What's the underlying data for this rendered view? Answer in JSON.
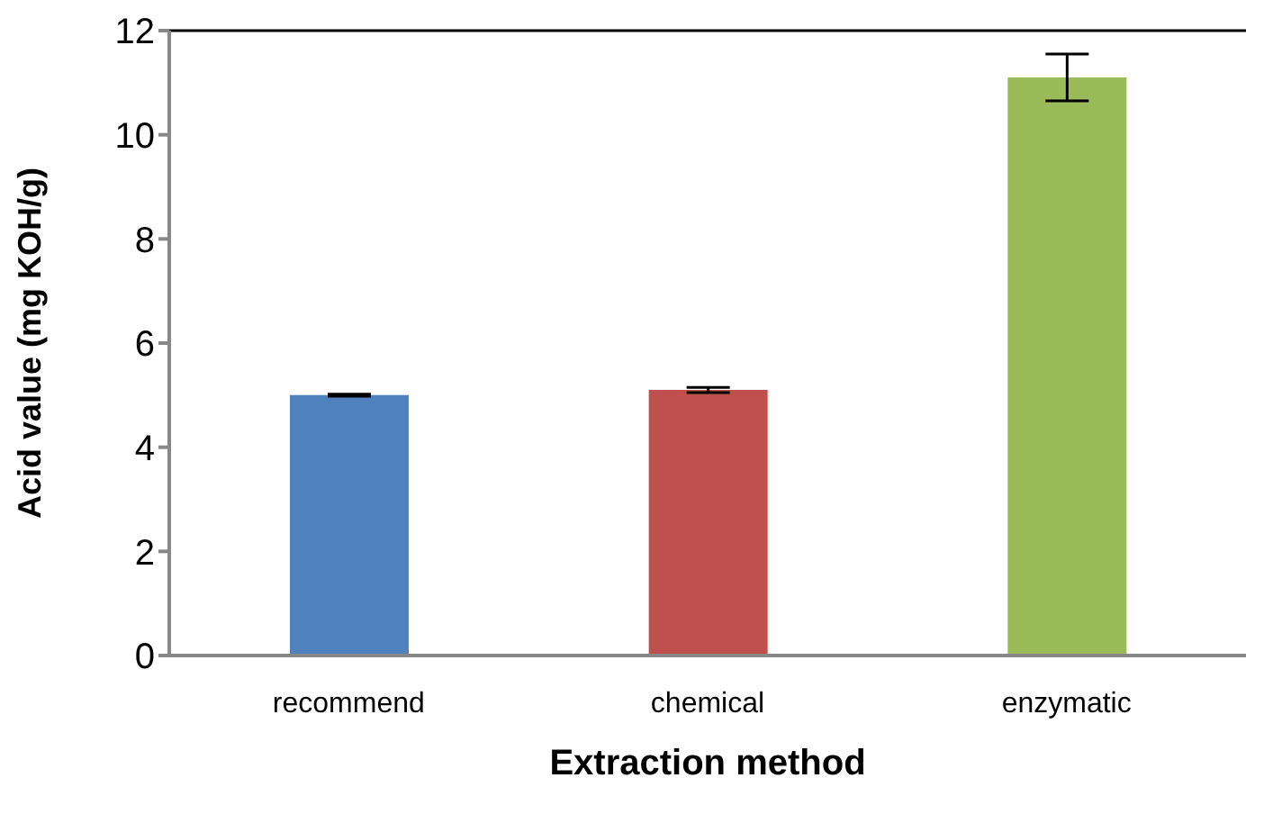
{
  "chart_data": {
    "type": "bar",
    "xlabel": "Extraction method",
    "ylabel": "Acid value (mg KOH/g)",
    "categories": [
      "recommend",
      "chemical",
      "enzymatic"
    ],
    "values": [
      5.0,
      5.1,
      11.1
    ],
    "colors": [
      "#4f81bd",
      "#c0504d",
      "#9bbb59"
    ],
    "errors": [
      0.02,
      0.05,
      0.45
    ],
    "ylim": [
      0,
      12
    ],
    "yticks": [
      0,
      2,
      4,
      6,
      8,
      10,
      12
    ],
    "grid": false,
    "legend": false
  }
}
